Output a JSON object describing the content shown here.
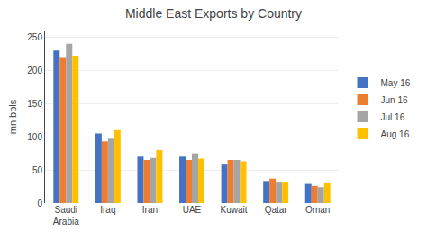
{
  "chart_data": {
    "type": "bar",
    "title": "Middle East Exports by Country",
    "ylabel": "mn bbls",
    "categories": [
      "Saudi\nArabia",
      "Iraq",
      "Iran",
      "UAE",
      "Kuwait",
      "Qatar",
      "Oman"
    ],
    "series": [
      {
        "name": "May 16",
        "color": "#4472C4",
        "values": [
          230,
          105,
          70,
          70,
          58,
          32,
          29
        ]
      },
      {
        "name": "Jun 16",
        "color": "#ED7D31",
        "values": [
          220,
          93,
          65,
          65,
          65,
          37,
          26
        ]
      },
      {
        "name": "Jul 16",
        "color": "#A5A5A5",
        "values": [
          240,
          97,
          68,
          75,
          65,
          31,
          24
        ]
      },
      {
        "name": "Aug 16",
        "color": "#FFC000",
        "values": [
          222,
          110,
          80,
          67,
          63,
          31,
          30
        ]
      }
    ],
    "ylim": [
      0,
      260
    ],
    "yticks": [
      0,
      50,
      100,
      150,
      200,
      250
    ],
    "grid": true,
    "legend": "right"
  }
}
